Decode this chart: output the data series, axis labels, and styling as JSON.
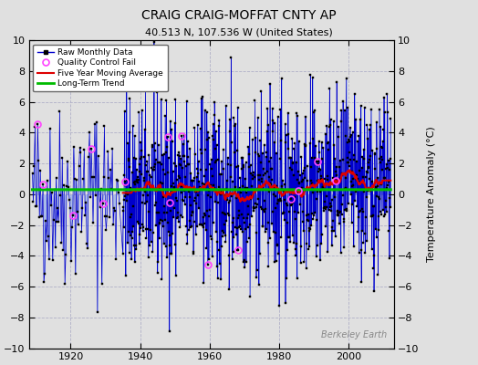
{
  "title": "CRAIG CRAIG-MOFFAT CNTY AP",
  "subtitle": "40.513 N, 107.536 W (United States)",
  "ylabel": "Temperature Anomaly (°C)",
  "watermark": "Berkeley Earth",
  "xlim": [
    1908,
    2013
  ],
  "ylim": [
    -10,
    10
  ],
  "yticks": [
    -10,
    -8,
    -6,
    -4,
    -2,
    0,
    2,
    4,
    6,
    8,
    10
  ],
  "xticks": [
    1920,
    1940,
    1960,
    1980,
    2000
  ],
  "bg_color": "#e0e0e0",
  "plot_bg_color": "#e0e0e0",
  "grid_color": "#b0b0c8",
  "bar_color": "#7799ee",
  "line_color": "#0000cc",
  "trend_color": "#00bb00",
  "moving_avg_color": "#dd0000",
  "qc_color": "#ff44ff",
  "seed": 42,
  "year_sparse_start": 1909,
  "year_sparse_end": 1934,
  "n_sparse": 100,
  "year_dense_start": 1935,
  "year_dense_end": 2012,
  "n_dense": 936,
  "data_amplitude": 2.8,
  "n_qc_fails_sparse": 5,
  "n_qc_fails_dense": 10
}
